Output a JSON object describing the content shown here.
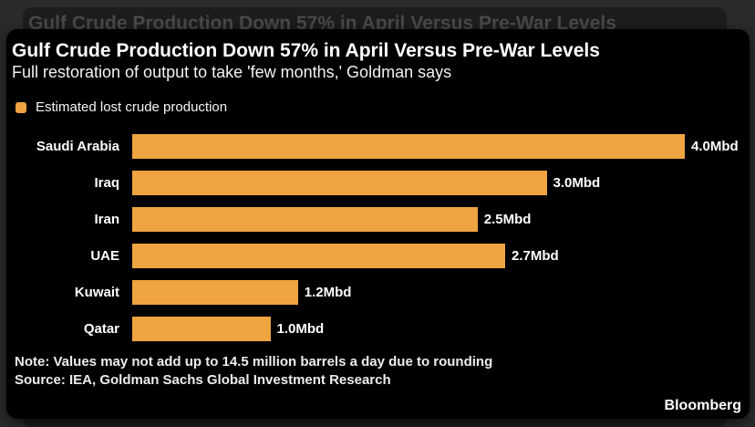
{
  "backdrop": {
    "title": "Gulf Crude Production Down 57% in April Versus Pre-War Levels"
  },
  "card": {
    "title": "Gulf Crude Production Down 57% in April Versus Pre-War Levels",
    "subtitle": "Full restoration of output to take 'few months,' Goldman says",
    "legend": {
      "label": "Estimated lost crude production",
      "swatch_color": "#eea440"
    },
    "note": "Note: Values may not add up to 14.5 million barrels a day due to rounding",
    "source": "Source: IEA, Goldman Sachs Global Investment Research",
    "brand": "Bloomberg"
  },
  "colors": {
    "bar_orange": "#eea440",
    "card_background": "#000000",
    "page_background": "#2b2b2b",
    "backdrop_card": "#1d1d1f",
    "text_white": "#ffffff"
  },
  "chart_data": {
    "type": "bar",
    "orientation": "horizontal",
    "title": "Gulf Crude Production Down 57% in April Versus Pre-War Levels",
    "subtitle": "Full restoration of output to take 'few months,' Goldman says",
    "series_name": "Estimated lost crude production",
    "unit": "Mbd",
    "categories": [
      "Saudi Arabia",
      "Iraq",
      "Iran",
      "UAE",
      "Kuwait",
      "Qatar"
    ],
    "values": [
      4.0,
      3.0,
      2.5,
      2.7,
      1.2,
      1.0
    ],
    "value_labels": [
      "4.0Mbd",
      "3.0Mbd",
      "2.5Mbd",
      "2.7Mbd",
      "1.2Mbd",
      "1.0Mbd"
    ],
    "xmax": 4.0,
    "bar_color": "#eea440",
    "grid": false,
    "legend_position": "top-left",
    "footnote": "Note: Values may not add up to 14.5 million barrels a day due to rounding",
    "source": "Source: IEA, Goldman Sachs Global Investment Research"
  }
}
